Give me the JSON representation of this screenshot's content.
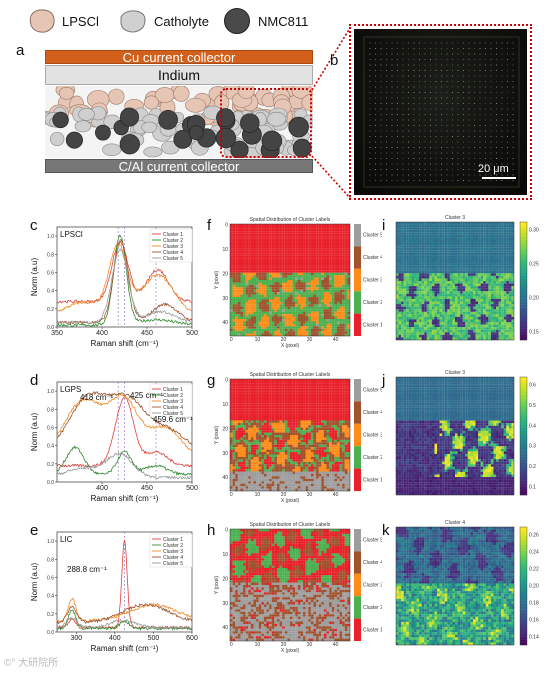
{
  "legend": {
    "items": [
      {
        "label": "LPSCl",
        "color": "#e7c5b4"
      },
      {
        "label": "Catholyte",
        "color": "#c9c9c9"
      },
      {
        "label": "NMC811",
        "color": "#4a4a4a"
      }
    ]
  },
  "panels": {
    "a": "a",
    "b": "b",
    "c": "c",
    "d": "d",
    "e": "e",
    "f": "f",
    "g": "g",
    "h": "h",
    "i": "i",
    "j": "j",
    "k": "k"
  },
  "schematic": {
    "top_layer": "Cu current collector",
    "indium": "Indium",
    "bottom_layer": "C/Al current collector",
    "colors": {
      "cu": "#d2601a",
      "indium": "#e2e2e2",
      "al": "#777777"
    }
  },
  "micrograph": {
    "scale_bar": "20 μm"
  },
  "spectra": [
    {
      "material": "LPSCl",
      "x_ticks": [
        "350",
        "400",
        "450",
        "500"
      ],
      "y_ticks": [
        "0.0",
        "0.2",
        "0.4",
        "0.6",
        "0.8",
        "1.0"
      ],
      "xlabel": "Raman shift (cm⁻¹)",
      "ylabel": "Norm (a.u)",
      "legend": [
        "Cluster 1",
        "Cluster 2",
        "Cluster 3",
        "Cluster 4",
        "Cluster 5"
      ],
      "annotations": []
    },
    {
      "material": "LGPS",
      "x_ticks": [
        "400",
        "450",
        "500"
      ],
      "y_ticks": [
        "0.0",
        "0.2",
        "0.4",
        "0.6",
        "0.8",
        "1.0"
      ],
      "xlabel": "Raman shift (cm⁻¹)",
      "ylabel": "Norm (a.u)",
      "legend": [
        "Cluster 1",
        "Cluster 2",
        "Cluster 3",
        "Cluster 4",
        "Cluster 5"
      ],
      "annotations": [
        "418 cm⁻¹",
        "425 cm⁻¹",
        "459.6 cm⁻¹"
      ]
    },
    {
      "material": "LIC",
      "x_ticks": [
        "300",
        "400",
        "500",
        "600"
      ],
      "y_ticks": [
        "0.0",
        "0.2",
        "0.4",
        "0.6",
        "0.8",
        "1.0"
      ],
      "xlabel": "Raman shift (cm⁻¹)",
      "ylabel": "Norm (a.u)",
      "legend": [
        "Cluster 1",
        "Cluster 2",
        "Cluster 3",
        "Cluster 4",
        "Cluster 5"
      ],
      "annotations": [
        "288.8 cm⁻¹"
      ]
    }
  ],
  "series_colors": [
    "#e0403a",
    "#2e8b2e",
    "#f08a24",
    "#a0522d",
    "#999999"
  ],
  "cluster_maps": [
    {
      "title": "Spatial Distribution of Cluster Labels",
      "xlabel": "X (pixel)",
      "ylabel": "Y (pixel)",
      "x_ticks": [
        "0",
        "10",
        "20",
        "30",
        "40"
      ],
      "y_ticks": [
        "0",
        "10",
        "20",
        "30",
        "40"
      ],
      "cbar_labels": [
        "Cluster 5",
        "Cluster 4",
        "Cluster 3",
        "Cluster 2",
        "Cluster 1"
      ]
    },
    {
      "title": "Spatial Distribution of Cluster Labels",
      "xlabel": "X (pixel)",
      "ylabel": "Y (pixel)",
      "x_ticks": [
        "0",
        "10",
        "20",
        "30",
        "40"
      ],
      "y_ticks": [
        "0",
        "10",
        "20",
        "30",
        "40"
      ],
      "cbar_labels": [
        "Cluster 5",
        "Cluster 4",
        "Cluster 3",
        "Cluster 2",
        "Cluster 1"
      ]
    },
    {
      "title": "Spatial Distribution of Cluster Labels",
      "xlabel": "X (pixel)",
      "ylabel": "Y (pixel)",
      "x_ticks": [
        "0",
        "10",
        "20",
        "30",
        "40"
      ],
      "y_ticks": [
        "0",
        "10",
        "20",
        "30",
        "40"
      ],
      "cbar_labels": [
        "Cluster 5",
        "Cluster 4",
        "Cluster 3",
        "Cluster 2",
        "Cluster 1"
      ]
    }
  ],
  "intensity_maps": [
    {
      "title": "Cluster 3",
      "cbar_ticks": [
        "0.30",
        "0.25",
        "0.20",
        "0.15"
      ]
    },
    {
      "title": "Cluster 3",
      "cbar_ticks": [
        "0.6",
        "0.5",
        "0.4",
        "0.3",
        "0.2",
        "0.1"
      ]
    },
    {
      "title": "Cluster 4",
      "cbar_ticks": [
        "0.26",
        "0.24",
        "0.22",
        "0.20",
        "0.18",
        "0.16",
        "0.14"
      ]
    }
  ],
  "watermark": "©° 大研院所"
}
